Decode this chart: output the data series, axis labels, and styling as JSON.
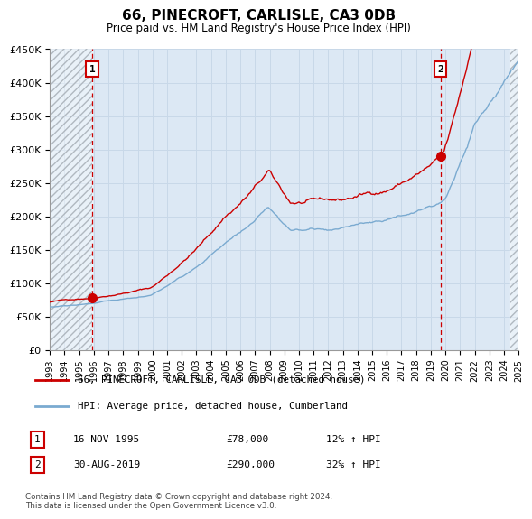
{
  "title": "66, PINECROFT, CARLISLE, CA3 0DB",
  "subtitle": "Price paid vs. HM Land Registry's House Price Index (HPI)",
  "xmin_year": 1993,
  "xmax_year": 2025,
  "ymin": 0,
  "ymax": 450000,
  "yticks": [
    0,
    50000,
    100000,
    150000,
    200000,
    250000,
    300000,
    350000,
    400000,
    450000
  ],
  "ytick_labels": [
    "£0",
    "£50K",
    "£100K",
    "£150K",
    "£200K",
    "£250K",
    "£300K",
    "£350K",
    "£400K",
    "£450K"
  ],
  "xtick_years": [
    1993,
    1994,
    1995,
    1996,
    1997,
    1998,
    1999,
    2000,
    2001,
    2002,
    2003,
    2004,
    2005,
    2006,
    2007,
    2008,
    2009,
    2010,
    2011,
    2012,
    2013,
    2014,
    2015,
    2016,
    2017,
    2018,
    2019,
    2020,
    2021,
    2022,
    2023,
    2024,
    2025
  ],
  "sale1_date": 1995.88,
  "sale1_price": 78000,
  "sale1_label": "1",
  "sale1_date_str": "16-NOV-1995",
  "sale1_price_str": "£78,000",
  "sale1_hpi_str": "12% ↑ HPI",
  "sale2_date": 2019.67,
  "sale2_price": 290000,
  "sale2_label": "2",
  "sale2_date_str": "30-AUG-2019",
  "sale2_price_str": "£290,000",
  "sale2_hpi_str": "32% ↑ HPI",
  "line1_color": "#cc0000",
  "line2_color": "#7aaad0",
  "grid_color": "#c8d8e8",
  "plot_bg_color": "#dce8f4",
  "legend_label1": "66, PINECROFT, CARLISLE, CA3 0DB (detached house)",
  "legend_label2": "HPI: Average price, detached house, Cumberland",
  "footer": "Contains HM Land Registry data © Crown copyright and database right 2024.\nThis data is licensed under the Open Government Licence v3.0."
}
